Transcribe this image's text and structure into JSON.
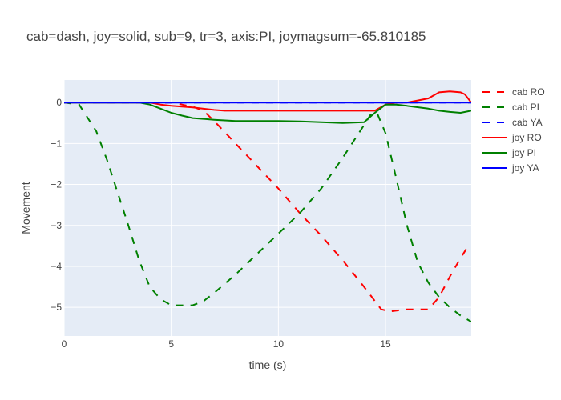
{
  "chart_data": {
    "type": "line",
    "title": "cab=dash, joy=solid, sub=9, tr=3, axis:PI, joymagsum=-65.810185",
    "xlabel": "time (s)",
    "ylabel": "Movement",
    "xlim": [
      0,
      19
    ],
    "ylim": [
      -5.7,
      0.55
    ],
    "xticks": [
      0,
      5,
      10,
      15
    ],
    "yticks": [
      0,
      -1,
      -2,
      -3,
      -4,
      -5
    ],
    "xtick_labels": [
      "0",
      "5",
      "10",
      "15"
    ],
    "ytick_labels": [
      "0",
      "−1",
      "−2",
      "−3",
      "−4",
      "−5"
    ],
    "grid": true,
    "legend_position": "right",
    "series": [
      {
        "name": "cab RO",
        "color": "#ff0000",
        "dash": "dash",
        "x": [
          0,
          5,
          6,
          6.5,
          7,
          8,
          9,
          10,
          11,
          12,
          13,
          14,
          14.8,
          15.2,
          16,
          17,
          17.5,
          18,
          18.5,
          18.8,
          19
        ],
        "y": [
          0,
          0,
          -0.1,
          -0.2,
          -0.45,
          -1.0,
          -1.55,
          -2.1,
          -2.7,
          -3.25,
          -3.85,
          -4.5,
          -5.05,
          -5.1,
          -5.05,
          -5.05,
          -4.75,
          -4.25,
          -3.8,
          -3.55,
          -3.55
        ]
      },
      {
        "name": "cab PI",
        "color": "#008000",
        "dash": "dash",
        "x": [
          0,
          0.7,
          1.5,
          2,
          2.5,
          3,
          3.5,
          4,
          4.5,
          5,
          5.5,
          6,
          6.5,
          7,
          8,
          9,
          10,
          11,
          12,
          13,
          14,
          14.3,
          14.6,
          15,
          15.5,
          16,
          16.5,
          17,
          17.5,
          18,
          18.5,
          19
        ],
        "y": [
          0,
          -0.05,
          -0.7,
          -1.4,
          -2.2,
          -3.0,
          -3.85,
          -4.5,
          -4.8,
          -4.95,
          -4.95,
          -4.95,
          -4.85,
          -4.65,
          -4.2,
          -3.7,
          -3.2,
          -2.7,
          -2.1,
          -1.35,
          -0.55,
          -0.3,
          -0.25,
          -0.75,
          -1.85,
          -3.0,
          -3.9,
          -4.4,
          -4.75,
          -5.0,
          -5.2,
          -5.35
        ]
      },
      {
        "name": "cab YA",
        "color": "#0000ff",
        "dash": "dash",
        "x": [
          0,
          19
        ],
        "y": [
          0,
          0
        ]
      },
      {
        "name": "joy RO",
        "color": "#ff0000",
        "dash": "solid",
        "x": [
          0,
          4,
          4.5,
          5,
          6,
          7,
          7.5,
          8,
          10,
          12,
          13,
          14,
          14.5,
          15,
          15.5,
          16,
          16.5,
          17,
          17.5,
          18,
          18.5,
          18.7,
          19
        ],
        "y": [
          0,
          0,
          -0.05,
          -0.08,
          -0.12,
          -0.18,
          -0.2,
          -0.2,
          -0.2,
          -0.2,
          -0.2,
          -0.2,
          -0.2,
          -0.05,
          0,
          0,
          0.05,
          0.1,
          0.25,
          0.27,
          0.25,
          0.2,
          0
        ]
      },
      {
        "name": "joy PI",
        "color": "#008000",
        "dash": "solid",
        "x": [
          0,
          3.5,
          4,
          4.5,
          5,
          5.5,
          6,
          7,
          8,
          9,
          10,
          11,
          12,
          13,
          14,
          14.5,
          15,
          15.5,
          16,
          17,
          17.5,
          18,
          18.5,
          19
        ],
        "y": [
          0,
          0,
          -0.05,
          -0.15,
          -0.25,
          -0.32,
          -0.38,
          -0.42,
          -0.45,
          -0.45,
          -0.45,
          -0.46,
          -0.48,
          -0.5,
          -0.48,
          -0.25,
          -0.05,
          -0.05,
          -0.08,
          -0.15,
          -0.2,
          -0.23,
          -0.25,
          -0.2
        ]
      },
      {
        "name": "joy YA",
        "color": "#0000ff",
        "dash": "solid",
        "x": [
          0,
          19
        ],
        "y": [
          0,
          0
        ]
      }
    ]
  }
}
